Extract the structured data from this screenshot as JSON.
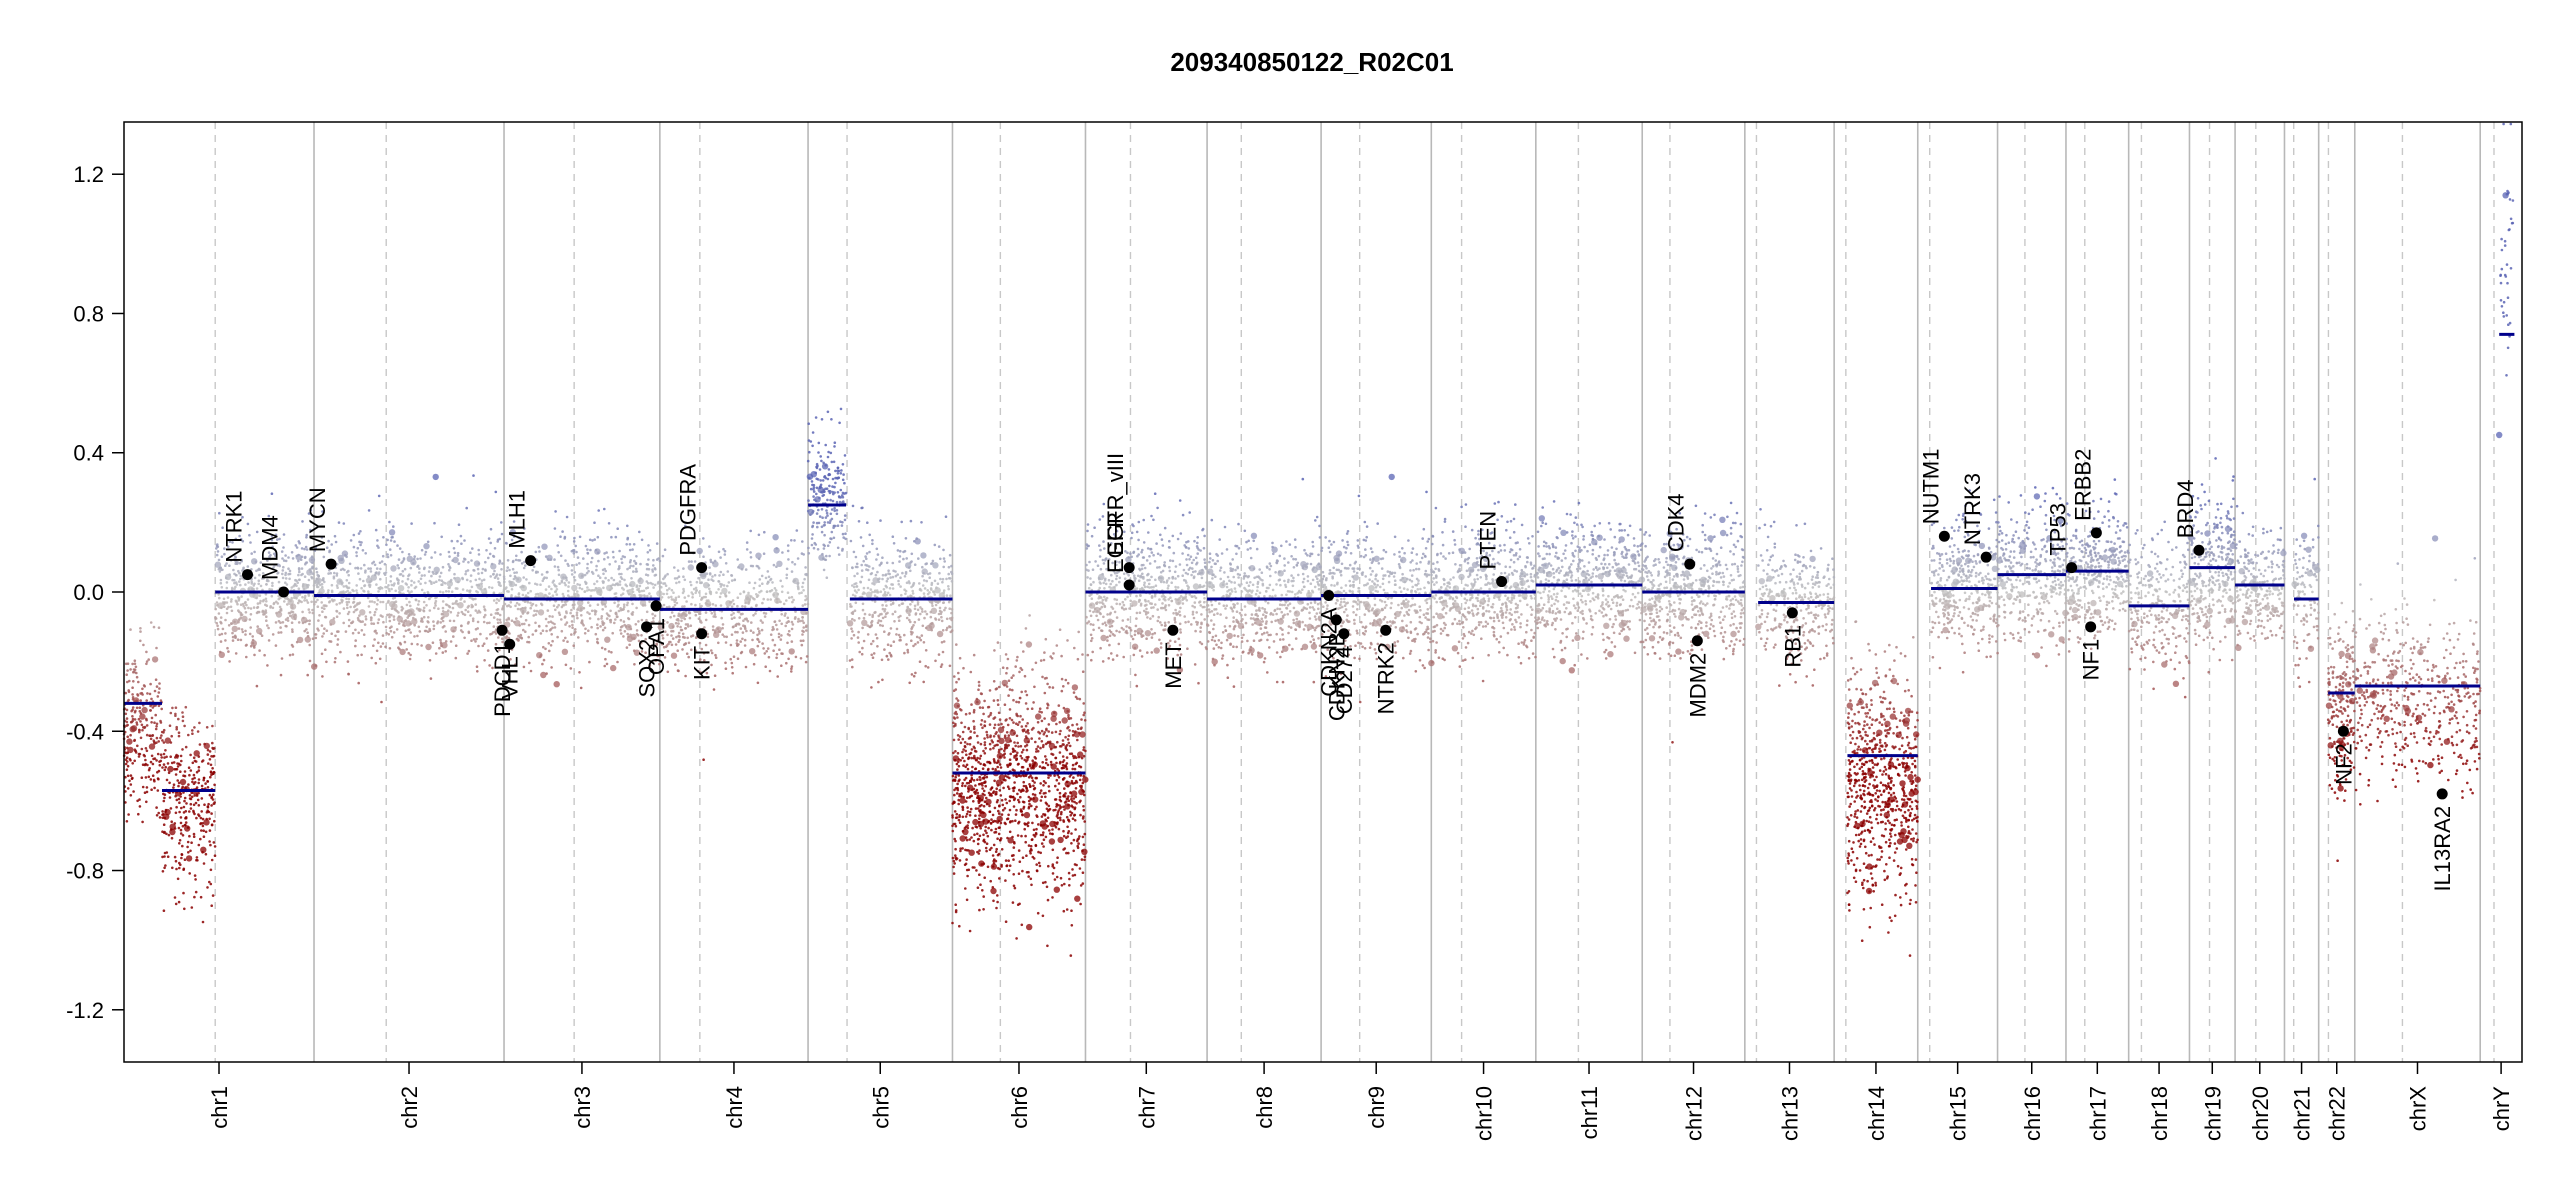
{
  "chart_data": {
    "type": "scatter",
    "title": "209340850122_R02C01",
    "xlabel": "",
    "ylabel": "",
    "ylim": [
      -1.35,
      1.35
    ],
    "yticks": [
      -1.2,
      -0.8,
      -0.4,
      0.0,
      0.4,
      0.8,
      1.2
    ],
    "ytick_labels": [
      "-1.2",
      "-0.8",
      "-0.4",
      "0.0",
      "0.4",
      "0.8",
      "1.2"
    ],
    "grid": false,
    "colors": {
      "frame": "#000000",
      "chrom_boundary": "#b8b8b8",
      "centromere": "#c8c8c8",
      "segment": "#00008b",
      "gain_point": "#5a64b4",
      "neutral_point": "#c0c0c0",
      "loss_point": "#8b0000",
      "gene_point": "#000000"
    },
    "chromosomes": [
      {
        "name": "chr1",
        "start": 0.0,
        "end": 1.0,
        "centromere": 0.48
      },
      {
        "name": "chr2",
        "start": 1.0,
        "end": 2.0,
        "centromere": 0.38
      },
      {
        "name": "chr3",
        "start": 2.0,
        "end": 2.82,
        "centromere": 0.45
      },
      {
        "name": "chr4",
        "start": 2.82,
        "end": 3.6,
        "centromere": 0.27
      },
      {
        "name": "chr5",
        "start": 3.6,
        "end": 4.36,
        "centromere": 0.27
      },
      {
        "name": "chr6",
        "start": 4.36,
        "end": 5.06,
        "centromere": 0.36
      },
      {
        "name": "chr7",
        "start": 5.06,
        "end": 5.7,
        "centromere": 0.37
      },
      {
        "name": "chr8",
        "start": 5.7,
        "end": 6.3,
        "centromere": 0.3
      },
      {
        "name": "chr9",
        "start": 6.3,
        "end": 6.88,
        "centromere": 0.35
      },
      {
        "name": "chr10",
        "start": 6.88,
        "end": 7.43,
        "centromere": 0.29
      },
      {
        "name": "chr11",
        "start": 7.43,
        "end": 7.99,
        "centromere": 0.4
      },
      {
        "name": "chr12",
        "start": 7.99,
        "end": 8.53,
        "centromere": 0.27
      },
      {
        "name": "chr13",
        "start": 8.53,
        "end": 9.0,
        "centromere": 0.13
      },
      {
        "name": "chr14",
        "start": 9.0,
        "end": 9.44,
        "centromere": 0.14
      },
      {
        "name": "chr15",
        "start": 9.44,
        "end": 9.86,
        "centromere": 0.15
      },
      {
        "name": "chr16",
        "start": 9.86,
        "end": 10.22,
        "centromere": 0.4
      },
      {
        "name": "chr17",
        "start": 10.22,
        "end": 10.55,
        "centromere": 0.3
      },
      {
        "name": "chr18",
        "start": 10.55,
        "end": 10.87,
        "centromere": 0.21
      },
      {
        "name": "chr19",
        "start": 10.87,
        "end": 11.11,
        "centromere": 0.44
      },
      {
        "name": "chr20",
        "start": 11.11,
        "end": 11.37,
        "centromere": 0.42
      },
      {
        "name": "chr21",
        "start": 11.37,
        "end": 11.55,
        "centromere": 0.27
      },
      {
        "name": "chr22",
        "start": 11.55,
        "end": 11.74,
        "centromere": 0.27
      },
      {
        "name": "chrX",
        "start": 11.74,
        "end": 12.4,
        "centromere": 0.38
      },
      {
        "name": "chrY",
        "start": 12.4,
        "end": 12.62,
        "centromere": 0.33
      }
    ],
    "segments": [
      {
        "chrom": "chr1",
        "from": 0.0,
        "to": 0.2,
        "y": -0.32
      },
      {
        "chrom": "chr1",
        "from": 0.2,
        "to": 0.48,
        "y": -0.57
      },
      {
        "chrom": "chr1",
        "from": 0.48,
        "to": 1.0,
        "y": 0.0
      },
      {
        "chrom": "chr2",
        "from": 1.0,
        "to": 2.0,
        "y": -0.01
      },
      {
        "chrom": "chr3",
        "from": 2.0,
        "to": 2.82,
        "y": -0.02
      },
      {
        "chrom": "chr4",
        "from": 2.82,
        "to": 3.6,
        "y": -0.05
      },
      {
        "chrom": "chr5",
        "from": 3.6,
        "to": 3.8,
        "y": 0.25
      },
      {
        "chrom": "chr5",
        "from": 3.82,
        "to": 4.36,
        "y": -0.02
      },
      {
        "chrom": "chr6",
        "from": 4.36,
        "to": 5.06,
        "y": -0.52
      },
      {
        "chrom": "chr7",
        "from": 5.06,
        "to": 5.7,
        "y": 0.0
      },
      {
        "chrom": "chr8",
        "from": 5.7,
        "to": 6.3,
        "y": -0.02
      },
      {
        "chrom": "chr9",
        "from": 6.3,
        "to": 6.88,
        "y": -0.01
      },
      {
        "chrom": "chr10",
        "from": 6.88,
        "to": 7.43,
        "y": 0.0
      },
      {
        "chrom": "chr11",
        "from": 7.43,
        "to": 7.99,
        "y": 0.02
      },
      {
        "chrom": "chr12",
        "from": 7.99,
        "to": 8.53,
        "y": 0.0
      },
      {
        "chrom": "chr13",
        "from": 8.6,
        "to": 9.0,
        "y": -0.03
      },
      {
        "chrom": "chr14",
        "from": 9.07,
        "to": 9.44,
        "y": -0.47
      },
      {
        "chrom": "chr15",
        "from": 9.51,
        "to": 9.86,
        "y": 0.01
      },
      {
        "chrom": "chr16",
        "from": 9.86,
        "to": 10.22,
        "y": 0.05
      },
      {
        "chrom": "chr17",
        "from": 10.22,
        "to": 10.55,
        "y": 0.06
      },
      {
        "chrom": "chr18",
        "from": 10.55,
        "to": 10.87,
        "y": -0.04
      },
      {
        "chrom": "chr19",
        "from": 10.87,
        "to": 11.11,
        "y": 0.07
      },
      {
        "chrom": "chr20",
        "from": 11.11,
        "to": 11.37,
        "y": 0.02
      },
      {
        "chrom": "chr21",
        "from": 11.42,
        "to": 11.55,
        "y": -0.02
      },
      {
        "chrom": "chr22",
        "from": 11.6,
        "to": 11.74,
        "y": -0.29
      },
      {
        "chrom": "chrX",
        "from": 11.74,
        "to": 12.4,
        "y": -0.27
      },
      {
        "chrom": "chrY",
        "from": 12.5,
        "to": 12.58,
        "y": 0.74
      }
    ],
    "noise_bands": [
      {
        "from": 0.0,
        "to": 0.2,
        "mean": -0.4,
        "sd": 0.12,
        "n": 260
      },
      {
        "from": 0.2,
        "to": 0.48,
        "mean": -0.6,
        "sd": 0.13,
        "n": 340
      },
      {
        "from": 0.48,
        "to": 1.0,
        "mean": 0.0,
        "sd": 0.09,
        "n": 520
      },
      {
        "from": 1.0,
        "to": 2.0,
        "mean": -0.01,
        "sd": 0.09,
        "n": 900
      },
      {
        "from": 2.0,
        "to": 2.82,
        "mean": -0.02,
        "sd": 0.09,
        "n": 740
      },
      {
        "from": 2.82,
        "to": 3.6,
        "mean": -0.05,
        "sd": 0.09,
        "n": 640
      },
      {
        "from": 3.6,
        "to": 3.8,
        "mean": 0.27,
        "sd": 0.09,
        "n": 220
      },
      {
        "from": 3.82,
        "to": 4.36,
        "mean": -0.02,
        "sd": 0.09,
        "n": 480
      },
      {
        "from": 4.36,
        "to": 5.06,
        "mean": -0.55,
        "sd": 0.16,
        "n": 1300
      },
      {
        "from": 5.06,
        "to": 5.7,
        "mean": 0.0,
        "sd": 0.09,
        "n": 620
      },
      {
        "from": 5.7,
        "to": 6.3,
        "mean": -0.02,
        "sd": 0.09,
        "n": 540
      },
      {
        "from": 6.3,
        "to": 6.88,
        "mean": -0.01,
        "sd": 0.09,
        "n": 520
      },
      {
        "from": 6.88,
        "to": 7.43,
        "mean": 0.0,
        "sd": 0.09,
        "n": 540
      },
      {
        "from": 7.43,
        "to": 7.99,
        "mean": 0.02,
        "sd": 0.09,
        "n": 560
      },
      {
        "from": 7.99,
        "to": 8.53,
        "mean": 0.0,
        "sd": 0.09,
        "n": 540
      },
      {
        "from": 8.6,
        "to": 9.0,
        "mean": -0.03,
        "sd": 0.09,
        "n": 320
      },
      {
        "from": 9.07,
        "to": 9.44,
        "mean": -0.55,
        "sd": 0.16,
        "n": 700
      },
      {
        "from": 9.51,
        "to": 9.86,
        "mean": 0.02,
        "sd": 0.09,
        "n": 360
      },
      {
        "from": 9.86,
        "to": 10.22,
        "mean": 0.05,
        "sd": 0.09,
        "n": 360
      },
      {
        "from": 10.22,
        "to": 10.55,
        "mean": 0.06,
        "sd": 0.09,
        "n": 380
      },
      {
        "from": 10.55,
        "to": 10.87,
        "mean": -0.04,
        "sd": 0.09,
        "n": 260
      },
      {
        "from": 10.87,
        "to": 11.11,
        "mean": 0.07,
        "sd": 0.1,
        "n": 300
      },
      {
        "from": 11.11,
        "to": 11.37,
        "mean": 0.02,
        "sd": 0.09,
        "n": 240
      },
      {
        "from": 11.42,
        "to": 11.55,
        "mean": -0.02,
        "sd": 0.09,
        "n": 110
      },
      {
        "from": 11.6,
        "to": 11.74,
        "mean": -0.33,
        "sd": 0.13,
        "n": 210
      },
      {
        "from": 11.74,
        "to": 12.4,
        "mean": -0.3,
        "sd": 0.12,
        "n": 480
      },
      {
        "from": 12.5,
        "to": 12.58,
        "mean": 0.95,
        "sd": 0.22,
        "n": 40
      }
    ],
    "genes": [
      {
        "name": "NTRK1",
        "x": 0.65,
        "y": 0.05,
        "side": "above"
      },
      {
        "name": "MDM4",
        "x": 0.84,
        "y": 0.0,
        "side": "above"
      },
      {
        "name": "MYCN",
        "x": 1.09,
        "y": 0.08,
        "side": "above"
      },
      {
        "name": "PDCD1",
        "x": 1.99,
        "y": -0.11,
        "side": "below"
      },
      {
        "name": "VHL",
        "x": 2.03,
        "y": -0.15,
        "side": "below"
      },
      {
        "name": "MLH1",
        "x": 2.14,
        "y": 0.09,
        "side": "above"
      },
      {
        "name": "SOX2",
        "x": 2.75,
        "y": -0.1,
        "side": "below"
      },
      {
        "name": "OPA1",
        "x": 2.8,
        "y": -0.04,
        "side": "below"
      },
      {
        "name": "PDGFRA",
        "x": 3.04,
        "y": 0.07,
        "side": "above"
      },
      {
        "name": "KIT",
        "x": 3.04,
        "y": -0.12,
        "side": "below"
      },
      {
        "name": "EGFR",
        "x": 5.29,
        "y": 0.02,
        "side": "above"
      },
      {
        "name": "EGFR_vIII",
        "x": 5.29,
        "y": 0.07,
        "side": "above"
      },
      {
        "name": "MET",
        "x": 5.52,
        "y": -0.11,
        "side": "below"
      },
      {
        "name": "CDKN2A",
        "x": 6.34,
        "y": -0.01,
        "side": "below"
      },
      {
        "name": "CDKN2B",
        "x": 6.38,
        "y": -0.08,
        "side": "below"
      },
      {
        "name": "CD274",
        "x": 6.42,
        "y": -0.12,
        "side": "below"
      },
      {
        "name": "NTRK2",
        "x": 6.64,
        "y": -0.11,
        "side": "below"
      },
      {
        "name": "PTEN",
        "x": 7.25,
        "y": 0.03,
        "side": "above"
      },
      {
        "name": "CDK4",
        "x": 8.24,
        "y": 0.08,
        "side": "above"
      },
      {
        "name": "MDM2",
        "x": 8.28,
        "y": -0.14,
        "side": "below"
      },
      {
        "name": "RB1",
        "x": 8.78,
        "y": -0.06,
        "side": "below"
      },
      {
        "name": "NUTM1",
        "x": 9.58,
        "y": 0.16,
        "side": "above"
      },
      {
        "name": "NTRK3",
        "x": 9.8,
        "y": 0.1,
        "side": "above"
      },
      {
        "name": "TP53",
        "x": 10.25,
        "y": 0.07,
        "side": "above"
      },
      {
        "name": "ERBB2",
        "x": 10.38,
        "y": 0.17,
        "side": "above"
      },
      {
        "name": "NF1",
        "x": 10.35,
        "y": -0.1,
        "side": "below"
      },
      {
        "name": "BRD4",
        "x": 10.92,
        "y": 0.12,
        "side": "above"
      },
      {
        "name": "NF2",
        "x": 11.68,
        "y": -0.4,
        "side": "below"
      },
      {
        "name": "IL13RA2",
        "x": 12.2,
        "y": -0.58,
        "side": "below"
      }
    ]
  }
}
